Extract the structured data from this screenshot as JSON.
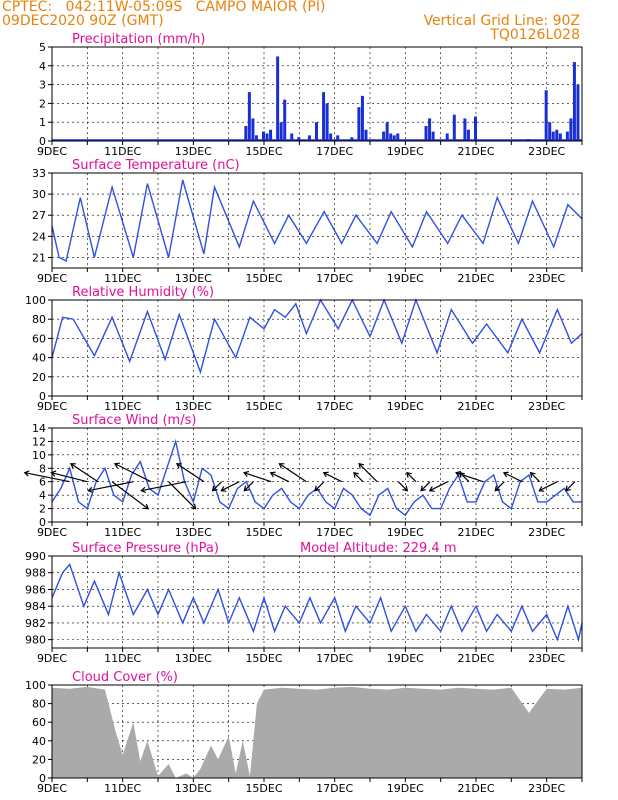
{
  "header": {
    "line1_left": "CPTEC:   042:11W-05:09S   CAMPO MAIOR (PI)",
    "line2_left": "09DEC2020 90Z (GMT)",
    "line1_right": "Vertical Grid Line: 90Z",
    "line2_right": "TQ0126L028"
  },
  "colors": {
    "header": "#e8820c",
    "title": "#e0109a",
    "series": "#3050e0",
    "bars": "#1a2ed8",
    "cloud": "#aaaaaa",
    "wind_arrow": "#000000"
  },
  "x_axis": {
    "day_start": 9,
    "day_end": 24,
    "labels": [
      "9DEC",
      "11DEC",
      "13DEC",
      "15DEC",
      "17DEC",
      "19DEC",
      "21DEC",
      "23DEC"
    ],
    "label_days": [
      9,
      11,
      13,
      15,
      17,
      19,
      21,
      23
    ]
  },
  "chart_data": [
    {
      "type": "bar",
      "title": "Precipitation (mm/h)",
      "ylim": [
        0,
        5
      ],
      "yticks": [
        0,
        1,
        2,
        3,
        4,
        5
      ],
      "x": [
        14.5,
        14.6,
        14.7,
        14.8,
        15.0,
        15.1,
        15.2,
        15.4,
        15.5,
        15.6,
        15.8,
        16.0,
        16.3,
        16.5,
        16.7,
        16.8,
        16.9,
        17.1,
        17.5,
        17.7,
        17.8,
        17.9,
        18.4,
        18.5,
        18.6,
        18.7,
        18.8,
        19.6,
        19.7,
        19.8,
        20.2,
        20.4,
        20.7,
        20.8,
        21.0,
        22.5,
        23.0,
        23.1,
        23.2,
        23.3,
        23.4,
        23.6,
        23.7,
        23.8,
        23.9
      ],
      "values": [
        0.8,
        2.6,
        1.2,
        0.3,
        0.5,
        0.4,
        0.6,
        4.5,
        1.0,
        2.2,
        0.4,
        0.2,
        0.3,
        1.0,
        2.6,
        2.0,
        0.4,
        0.3,
        0.2,
        1.8,
        2.4,
        0.6,
        0.5,
        1.0,
        0.4,
        0.3,
        0.4,
        0.8,
        1.2,
        0.5,
        0.4,
        1.4,
        1.2,
        0.6,
        1.3,
        0.1,
        2.7,
        1.0,
        0.5,
        0.6,
        0.4,
        0.5,
        1.2,
        4.2,
        3.0
      ]
    },
    {
      "type": "line",
      "title": "Surface Temperature (nC)",
      "ylim": [
        19.5,
        33
      ],
      "yticks": [
        21,
        24,
        27,
        30,
        33
      ],
      "x": [
        9.0,
        9.2,
        9.4,
        9.8,
        10.2,
        10.7,
        11.3,
        11.7,
        12.3,
        12.7,
        13.3,
        13.6,
        14.3,
        14.7,
        15.3,
        15.7,
        16.2,
        16.7,
        17.2,
        17.6,
        18.2,
        18.6,
        19.2,
        19.6,
        20.2,
        20.6,
        21.2,
        21.6,
        22.2,
        22.6,
        23.2,
        23.6,
        24.0
      ],
      "values": [
        25.5,
        21.0,
        20.5,
        29.5,
        21.0,
        31.0,
        21.0,
        31.5,
        21.0,
        32.0,
        21.5,
        31.0,
        22.5,
        29.0,
        23.0,
        27.0,
        23.0,
        27.5,
        23.0,
        27.0,
        23.0,
        27.5,
        22.5,
        27.5,
        23.0,
        27.0,
        23.0,
        29.5,
        23.0,
        29.0,
        22.5,
        28.5,
        26.5
      ]
    },
    {
      "type": "line",
      "title": "Relative Humidity (%)",
      "ylim": [
        0,
        100
      ],
      "yticks": [
        0,
        20,
        40,
        60,
        80,
        100
      ],
      "x": [
        9.0,
        9.3,
        9.6,
        10.2,
        10.7,
        11.2,
        11.7,
        12.2,
        12.6,
        13.2,
        13.6,
        14.2,
        14.6,
        15.0,
        15.3,
        15.6,
        15.9,
        16.2,
        16.6,
        17.1,
        17.5,
        18.0,
        18.4,
        18.9,
        19.3,
        19.9,
        20.3,
        20.9,
        21.3,
        21.9,
        22.3,
        22.8,
        23.3,
        23.7,
        24.0
      ],
      "values": [
        40,
        82,
        80,
        42,
        82,
        36,
        88,
        38,
        85,
        25,
        80,
        40,
        82,
        70,
        90,
        82,
        96,
        65,
        100,
        70,
        100,
        62,
        100,
        55,
        100,
        45,
        90,
        55,
        75,
        45,
        80,
        45,
        90,
        55,
        65
      ]
    },
    {
      "type": "line",
      "title": "Surface Wind (m/s)",
      "ylim": [
        0,
        14
      ],
      "yticks": [
        0,
        2,
        4,
        6,
        8,
        10,
        12,
        14
      ],
      "x": [
        9.0,
        9.25,
        9.5,
        9.75,
        10.0,
        10.25,
        10.5,
        10.75,
        11.0,
        11.25,
        11.5,
        11.75,
        12.0,
        12.25,
        12.5,
        12.75,
        13.0,
        13.25,
        13.5,
        13.75,
        14.0,
        14.25,
        14.5,
        14.75,
        15.0,
        15.25,
        15.5,
        15.75,
        16.0,
        16.25,
        16.5,
        16.75,
        17.0,
        17.25,
        17.5,
        17.75,
        18.0,
        18.25,
        18.5,
        18.75,
        19.0,
        19.25,
        19.5,
        19.75,
        20.0,
        20.25,
        20.5,
        20.75,
        21.0,
        21.25,
        21.5,
        21.75,
        22.0,
        22.25,
        22.5,
        22.75,
        23.0,
        23.25,
        23.5,
        23.75,
        24.0
      ],
      "values": [
        3,
        5,
        8,
        3,
        2,
        6,
        8,
        4,
        3,
        7,
        9,
        5,
        4,
        8,
        12,
        6,
        3,
        8,
        7,
        3,
        2,
        5,
        6,
        3,
        2,
        4,
        5,
        3,
        2,
        4,
        5,
        3,
        2,
        5,
        4,
        2,
        1,
        4,
        5,
        2,
        1,
        3,
        4,
        2,
        2,
        5,
        7,
        3,
        3,
        6,
        7,
        3,
        2,
        6,
        7,
        3,
        3,
        4,
        5,
        3,
        3
      ]
    },
    {
      "type": "line",
      "title": "Surface Pressure (hPa)",
      "ylim": [
        979,
        990
      ],
      "yticks": [
        980,
        982,
        984,
        986,
        988,
        990
      ],
      "annotation": "Model Altitude: 229.4  m",
      "x": [
        9.0,
        9.3,
        9.5,
        9.9,
        10.2,
        10.6,
        10.9,
        11.3,
        11.7,
        12.0,
        12.3,
        12.7,
        13.0,
        13.3,
        13.7,
        14.0,
        14.3,
        14.7,
        15.0,
        15.3,
        15.6,
        16.0,
        16.3,
        16.6,
        17.0,
        17.3,
        17.6,
        18.0,
        18.3,
        18.6,
        19.0,
        19.3,
        19.6,
        20.0,
        20.3,
        20.6,
        21.0,
        21.3,
        21.6,
        22.0,
        22.3,
        22.6,
        23.0,
        23.3,
        23.6,
        23.9,
        24.0
      ],
      "values": [
        985,
        988,
        989,
        984,
        987,
        983,
        988,
        983,
        986,
        983,
        986,
        982,
        985,
        982,
        986,
        982,
        985,
        981,
        985,
        981,
        984,
        982,
        985,
        982,
        985,
        981,
        984,
        982,
        985,
        981,
        984,
        981,
        983,
        981,
        984,
        981,
        984,
        981,
        983,
        981,
        984,
        981,
        983,
        980,
        984,
        980,
        982
      ]
    },
    {
      "type": "area",
      "title": "Cloud Cover (%)",
      "ylim": [
        0,
        100
      ],
      "yticks": [
        0,
        20,
        40,
        60,
        80,
        100
      ],
      "x": [
        9.0,
        9.5,
        10.0,
        10.5,
        10.8,
        11.0,
        11.3,
        11.5,
        11.7,
        12.0,
        12.3,
        12.5,
        12.8,
        13.0,
        13.2,
        13.5,
        13.7,
        14.0,
        14.2,
        14.4,
        14.6,
        14.8,
        15.0,
        15.5,
        16.0,
        16.5,
        17.0,
        17.5,
        18.0,
        18.5,
        19.0,
        19.5,
        20.0,
        20.5,
        21.0,
        21.5,
        22.0,
        22.5,
        23.0,
        23.5,
        24.0
      ],
      "values": [
        97,
        96,
        98,
        95,
        50,
        25,
        60,
        18,
        40,
        2,
        15,
        0,
        5,
        0,
        10,
        35,
        20,
        45,
        5,
        40,
        2,
        80,
        95,
        97,
        96,
        95,
        97,
        98,
        96,
        95,
        97,
        96,
        95,
        97,
        96,
        95,
        97,
        70,
        96,
        95,
        97
      ]
    },
    {
      "type": "scatter",
      "title": "Wind direction vectors",
      "x": [
        9.5,
        10.0,
        10.3,
        10.7,
        11.3,
        11.8,
        12.3,
        12.8,
        13.3,
        13.8,
        14.3,
        14.7,
        15.2,
        15.7,
        16.2,
        16.7,
        17.2,
        17.8,
        18.2,
        18.8,
        19.3,
        19.7,
        20.2,
        20.8,
        21.2,
        21.8,
        22.3,
        22.8,
        23.3,
        23.8
      ],
      "u": [
        -5,
        -4,
        -3,
        4,
        -5,
        -4,
        3,
        -5,
        -3,
        -1,
        -2,
        -1,
        -3,
        -2,
        -3,
        -1,
        -2,
        -1,
        -2,
        1,
        -1,
        -1,
        -2,
        -1,
        -3,
        -1,
        -2,
        -1,
        -2,
        -1
      ],
      "v": [
        1,
        1,
        2,
        -3,
        -1,
        2,
        -3,
        -1,
        2,
        -1,
        -1,
        -1,
        1,
        1,
        2,
        -1,
        1,
        1,
        2,
        -1,
        1,
        -1,
        -1,
        1,
        1,
        -1,
        1,
        1,
        -1,
        -1
      ]
    }
  ]
}
